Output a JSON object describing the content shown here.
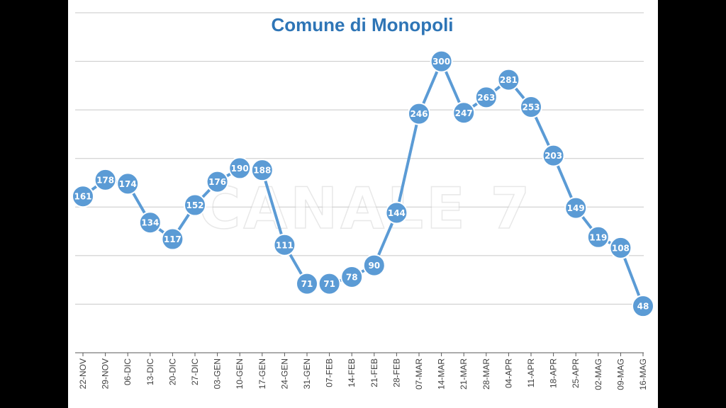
{
  "chart_data": {
    "type": "line",
    "title": "Comune di Monopoli",
    "xlabel": "",
    "ylabel": "",
    "ylim": [
      0,
      350
    ],
    "grid": true,
    "categories": [
      "22-NOV",
      "29-NOV",
      "06-DIC",
      "13-DIC",
      "20-DIC",
      "27-DIC",
      "03-GEN",
      "10-GEN",
      "17-GEN",
      "24-GEN",
      "31-GEN",
      "07-FEB",
      "14-FEB",
      "21-FEB",
      "28-FEB",
      "07-MAR",
      "14-MAR",
      "21-MAR",
      "28-MAR",
      "04-APR",
      "11-APR",
      "18-APR",
      "25-APR",
      "02-MAG",
      "09-MAG",
      "16-MAG"
    ],
    "series": [
      {
        "values": [
          161,
          178,
          174,
          134,
          117,
          152,
          176,
          190,
          188,
          111,
          71,
          71,
          78,
          90,
          144,
          246,
          300,
          247,
          263,
          281,
          253,
          203,
          149,
          119,
          108,
          48
        ]
      }
    ],
    "colors": {
      "line": "#5b9bd5",
      "title": "#2e75b6"
    }
  },
  "watermark": "CANALE 7"
}
